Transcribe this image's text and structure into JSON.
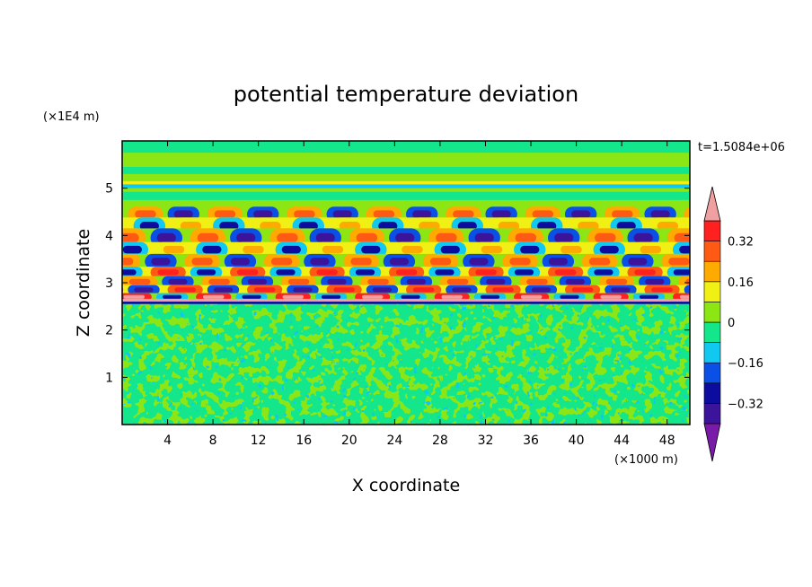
{
  "chart_data": {
    "type": "heatmap",
    "title": "potential temperature deviation",
    "xlabel": "X coordinate",
    "ylabel": "Z coordinate",
    "x_unit": "(×1000 m)",
    "y_unit": "(×1E4 m)",
    "time_label": "t=1.5084e+06",
    "xlim": [
      0,
      50
    ],
    "ylim": [
      0,
      6
    ],
    "x_ticks": [
      4,
      8,
      12,
      16,
      20,
      24,
      28,
      32,
      36,
      40,
      44,
      48
    ],
    "y_ticks": [
      1,
      2,
      3,
      4,
      5
    ],
    "colorbar": {
      "levels": [
        -0.4,
        -0.32,
        -0.24,
        -0.16,
        -0.08,
        0,
        0.08,
        0.16,
        0.24,
        0.32,
        0.4
      ],
      "labels": [
        "0.32",
        "0.16",
        "0",
        "−0.16",
        "−0.32"
      ],
      "label_values": [
        0.32,
        0.16,
        0,
        -0.16,
        -0.32
      ],
      "colors": [
        "#7a1aa8",
        "#3c149b",
        "#0c0c9e",
        "#0a50e6",
        "#10c8f0",
        "#14e68c",
        "#8ce614",
        "#f0f014",
        "#ffaa00",
        "#ff5a14",
        "#ff2020",
        "#f0a0a0"
      ],
      "extend": "both"
    },
    "regions": [
      {
        "name": "lower boundary layer",
        "z_range": [
          0,
          2.6
        ],
        "pattern": "fine mottled, values between -0.08 and 0.08"
      },
      {
        "name": "wave layer",
        "z_range": [
          2.6,
          4.6
        ],
        "pattern": "strong alternating positive and negative bands, up to about ±0.4"
      },
      {
        "name": "upper layer",
        "z_range": [
          4.6,
          6
        ],
        "pattern": "weak horizontal banding around 0"
      }
    ]
  }
}
